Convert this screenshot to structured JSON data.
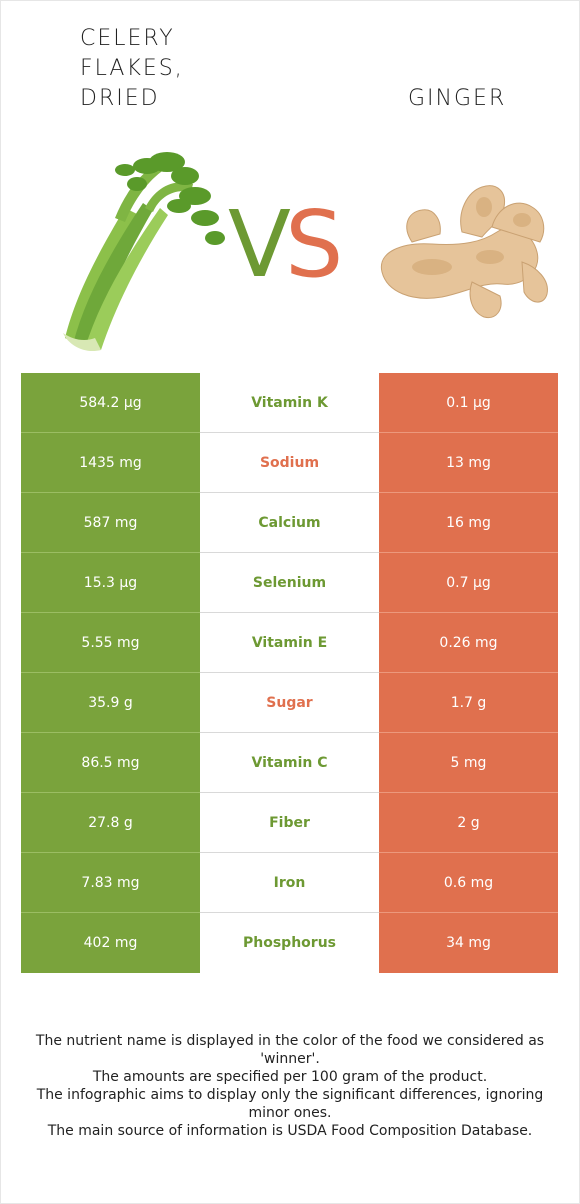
{
  "foods": {
    "left": {
      "name": "Celery flakes, dried",
      "color": "#7aa33c"
    },
    "right": {
      "name": "Ginger",
      "color": "#e0704e"
    }
  },
  "vs": {
    "v": "V",
    "s": "S"
  },
  "rows": [
    {
      "left": "584.2 µg",
      "nutrient": "Vitamin K",
      "right": "0.1 µg",
      "winner": "left"
    },
    {
      "left": "1435 mg",
      "nutrient": "Sodium",
      "right": "13 mg",
      "winner": "right"
    },
    {
      "left": "587 mg",
      "nutrient": "Calcium",
      "right": "16 mg",
      "winner": "left"
    },
    {
      "left": "15.3 µg",
      "nutrient": "Selenium",
      "right": "0.7 µg",
      "winner": "left"
    },
    {
      "left": "5.55 mg",
      "nutrient": "Vitamin E",
      "right": "0.26 mg",
      "winner": "left"
    },
    {
      "left": "35.9 g",
      "nutrient": "Sugar",
      "right": "1.7 g",
      "winner": "right"
    },
    {
      "left": "86.5 mg",
      "nutrient": "Vitamin C",
      "right": "5 mg",
      "winner": "left"
    },
    {
      "left": "27.8 g",
      "nutrient": "Fiber",
      "right": "2 g",
      "winner": "left"
    },
    {
      "left": "7.83 mg",
      "nutrient": "Iron",
      "right": "0.6 mg",
      "winner": "left"
    },
    {
      "left": "402 mg",
      "nutrient": "Phosphorus",
      "right": "34 mg",
      "winner": "left"
    }
  ],
  "footer": [
    "The nutrient name is displayed in the color of the food we considered as 'winner'.",
    "The amounts are specified per 100 gram of the product.",
    "The infographic aims to display only the significant differences, ignoring minor ones.",
    "The main source of information is USDA Food Composition Database."
  ]
}
